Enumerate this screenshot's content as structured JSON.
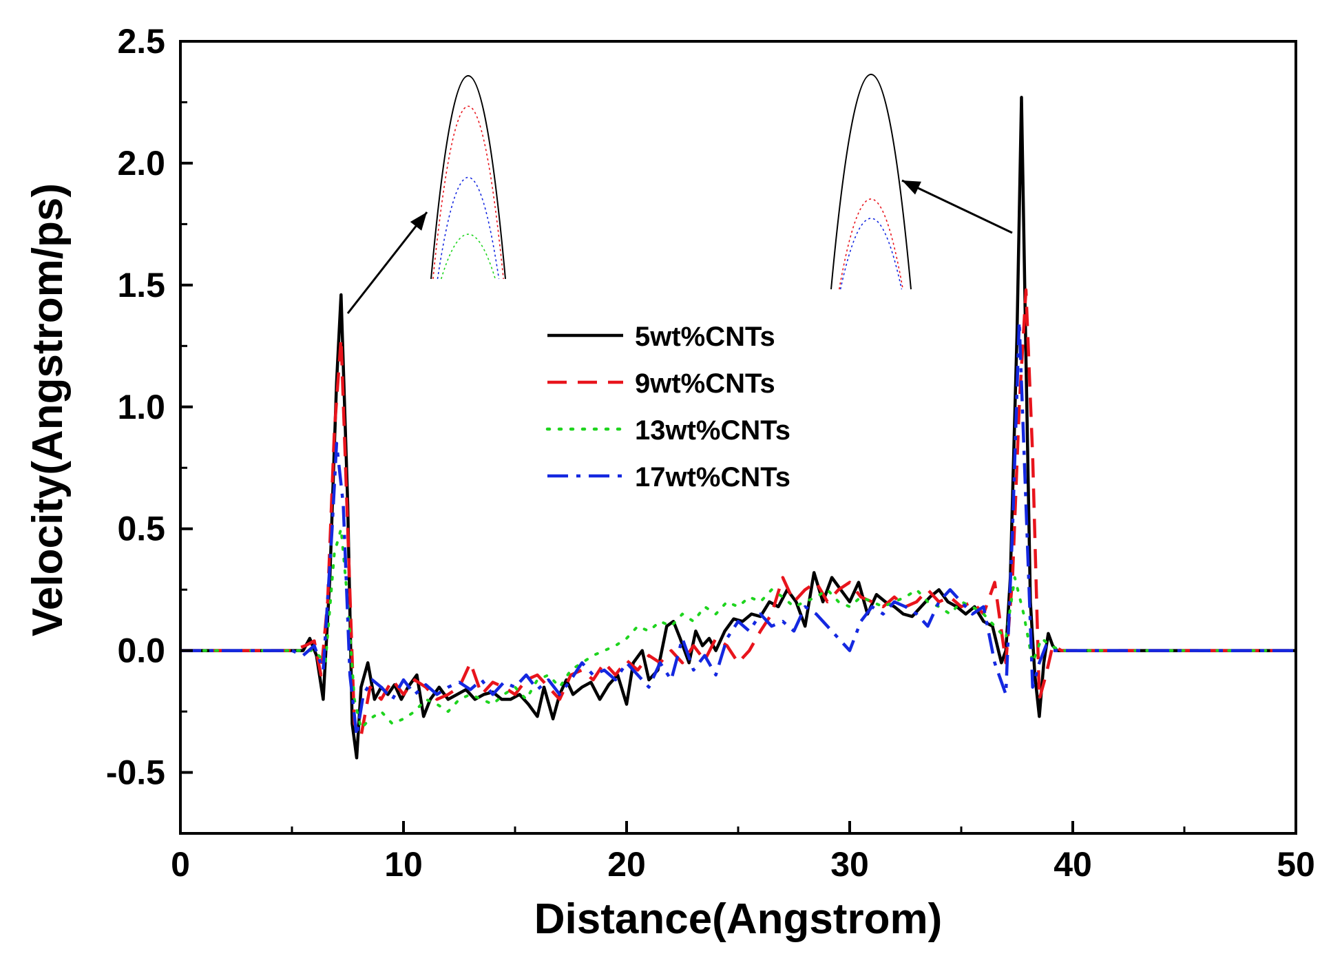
{
  "chart_data": {
    "type": "line",
    "title": "",
    "xlabel": "Distance(Angstrom)",
    "ylabel": "Velocity(Angstrom/ps)",
    "xlim": [
      0,
      50
    ],
    "ylim": [
      -0.75,
      2.5
    ],
    "xticks": [
      0,
      10,
      20,
      30,
      40,
      50
    ],
    "xtick_labels": [
      "0",
      "10",
      "20",
      "30",
      "40",
      "50"
    ],
    "yticks": [
      -0.5,
      0.0,
      0.5,
      1.0,
      1.5,
      2.0,
      2.5
    ],
    "ytick_labels": [
      "-0.5",
      "0.0",
      "0.5",
      "1.0",
      "1.5",
      "2.0",
      "2.5"
    ],
    "grid": false,
    "legend_position": "center",
    "series": [
      {
        "name": "5wt%CNTs",
        "color": "#000000",
        "dash": "solid",
        "x": [
          0,
          5,
          5.5,
          5.8,
          6.1,
          6.4,
          6.7,
          7.0,
          7.2,
          7.5,
          7.7,
          7.9,
          8.1,
          8.4,
          8.7,
          9.0,
          9.3,
          9.6,
          9.9,
          10.2,
          10.6,
          10.9,
          11.2,
          11.6,
          12.0,
          12.4,
          12.8,
          13.2,
          13.6,
          14.0,
          14.4,
          14.8,
          15.2,
          15.6,
          16.0,
          16.3,
          16.7,
          17.0,
          17.3,
          17.6,
          18.0,
          18.4,
          18.8,
          19.2,
          19.6,
          20.0,
          20.3,
          20.7,
          21.0,
          21.4,
          21.8,
          22.1,
          22.4,
          22.8,
          23.1,
          23.4,
          23.7,
          24.0,
          24.4,
          24.8,
          25.2,
          25.6,
          26.0,
          26.4,
          26.8,
          27.2,
          27.6,
          28.0,
          28.4,
          28.8,
          29.2,
          29.6,
          30.0,
          30.4,
          30.8,
          31.2,
          31.6,
          32.0,
          32.4,
          32.8,
          33.2,
          33.6,
          34.0,
          34.4,
          34.8,
          35.2,
          35.6,
          36.0,
          36.4,
          36.8,
          37.0,
          37.2,
          37.5,
          37.7,
          37.9,
          38.1,
          38.3,
          38.5,
          38.7,
          38.9,
          39.1,
          39.3,
          39.6,
          40.0,
          45,
          50
        ],
        "y": [
          0,
          0,
          0,
          0.05,
          -0.02,
          -0.2,
          0.3,
          1.1,
          1.46,
          0.6,
          -0.3,
          -0.44,
          -0.15,
          -0.05,
          -0.2,
          -0.15,
          -0.18,
          -0.14,
          -0.2,
          -0.15,
          -0.1,
          -0.27,
          -0.2,
          -0.15,
          -0.2,
          -0.18,
          -0.16,
          -0.2,
          -0.18,
          -0.17,
          -0.2,
          -0.2,
          -0.18,
          -0.22,
          -0.27,
          -0.15,
          -0.28,
          -0.18,
          -0.12,
          -0.18,
          -0.15,
          -0.13,
          -0.2,
          -0.14,
          -0.1,
          -0.22,
          -0.05,
          0.0,
          -0.12,
          -0.08,
          0.1,
          0.12,
          0.05,
          -0.05,
          0.08,
          0.02,
          0.05,
          0.0,
          0.08,
          0.13,
          0.12,
          0.15,
          0.14,
          0.2,
          0.18,
          0.25,
          0.2,
          0.1,
          0.32,
          0.2,
          0.3,
          0.25,
          0.2,
          0.28,
          0.15,
          0.23,
          0.2,
          0.18,
          0.15,
          0.14,
          0.18,
          0.22,
          0.25,
          0.2,
          0.18,
          0.15,
          0.18,
          0.12,
          0.1,
          -0.05,
          0.0,
          0.3,
          1.3,
          2.27,
          1.2,
          0.2,
          -0.1,
          -0.27,
          -0.05,
          0.07,
          0.02,
          0,
          0,
          0,
          0,
          0
        ]
      },
      {
        "name": "9wt%CNTs",
        "color": "#e8141c",
        "dash": "long-dash",
        "x": [
          0,
          5,
          5.6,
          6.0,
          6.3,
          6.6,
          6.9,
          7.2,
          7.5,
          7.8,
          8.1,
          8.5,
          9.0,
          9.5,
          10.0,
          10.5,
          11.0,
          11.5,
          12.0,
          12.5,
          13.0,
          13.5,
          14.0,
          14.5,
          15.0,
          15.5,
          16.0,
          16.5,
          17.0,
          17.5,
          18.0,
          18.5,
          19.0,
          19.5,
          20.0,
          20.5,
          21.0,
          21.5,
          22.0,
          22.5,
          23.0,
          23.5,
          24.0,
          24.5,
          25.0,
          25.5,
          26.0,
          26.5,
          27.0,
          27.5,
          28.0,
          28.5,
          29.0,
          29.5,
          30.0,
          30.5,
          31.0,
          31.5,
          32.0,
          32.5,
          33.0,
          33.5,
          34.0,
          34.5,
          35.0,
          35.5,
          36.0,
          36.5,
          37.0,
          37.3,
          37.6,
          37.9,
          38.2,
          38.5,
          38.8,
          39.1,
          39.5,
          40.0,
          45,
          50
        ],
        "y": [
          0,
          0,
          0.02,
          0.04,
          -0.1,
          0.2,
          0.9,
          1.28,
          0.5,
          -0.3,
          -0.35,
          -0.15,
          -0.2,
          -0.12,
          -0.18,
          -0.12,
          -0.15,
          -0.2,
          -0.18,
          -0.15,
          -0.05,
          -0.18,
          -0.13,
          -0.15,
          -0.18,
          -0.12,
          -0.1,
          -0.15,
          -0.2,
          -0.1,
          -0.08,
          -0.12,
          -0.05,
          -0.1,
          -0.04,
          -0.08,
          -0.02,
          -0.05,
          0.0,
          -0.05,
          0.02,
          -0.04,
          0.05,
          0.02,
          -0.05,
          0.0,
          0.08,
          0.15,
          0.3,
          0.2,
          0.25,
          0.28,
          0.2,
          0.25,
          0.28,
          0.22,
          0.2,
          0.18,
          0.22,
          0.18,
          0.2,
          0.25,
          0.2,
          0.22,
          0.18,
          0.2,
          0.15,
          0.28,
          -0.05,
          0.3,
          1.0,
          1.48,
          0.8,
          -0.2,
          -0.1,
          0.02,
          0,
          0,
          0,
          0
        ]
      },
      {
        "name": "13wt%CNTs",
        "color": "#1ed41e",
        "dash": "dotted",
        "x": [
          0,
          5,
          6.0,
          6.5,
          6.9,
          7.2,
          7.5,
          7.8,
          8.1,
          8.5,
          9.0,
          9.5,
          10.0,
          10.5,
          11.0,
          11.5,
          12.0,
          12.5,
          13.0,
          13.5,
          14.0,
          14.5,
          15.0,
          15.5,
          16.0,
          16.5,
          17.0,
          17.5,
          18.0,
          18.5,
          19.0,
          19.5,
          20.0,
          20.5,
          21.0,
          21.5,
          22.0,
          22.5,
          23.0,
          23.5,
          24.0,
          24.5,
          25.0,
          25.5,
          26.0,
          26.5,
          27.0,
          27.5,
          28.0,
          28.5,
          29.0,
          29.5,
          30.0,
          30.5,
          31.0,
          31.5,
          32.0,
          32.5,
          33.0,
          33.5,
          34.0,
          34.5,
          35.0,
          35.5,
          36.0,
          36.5,
          37.0,
          37.4,
          37.8,
          38.2,
          38.6,
          39.0,
          39.5,
          40.0,
          45,
          50
        ],
        "y": [
          0,
          0,
          0,
          -0.05,
          0.4,
          0.5,
          0.2,
          -0.2,
          -0.32,
          -0.28,
          -0.25,
          -0.3,
          -0.28,
          -0.25,
          -0.2,
          -0.22,
          -0.25,
          -0.2,
          -0.18,
          -0.2,
          -0.22,
          -0.18,
          -0.15,
          -0.2,
          -0.12,
          -0.1,
          -0.15,
          -0.08,
          -0.05,
          -0.02,
          0.0,
          0.02,
          0.05,
          0.1,
          0.08,
          0.12,
          0.1,
          0.15,
          0.12,
          0.18,
          0.15,
          0.2,
          0.18,
          0.22,
          0.2,
          0.25,
          0.22,
          0.18,
          0.2,
          0.22,
          0.25,
          0.2,
          0.18,
          0.22,
          0.2,
          0.18,
          0.2,
          0.22,
          0.25,
          0.2,
          0.18,
          0.15,
          0.2,
          0.18,
          0.15,
          0.1,
          0.05,
          0.3,
          0.15,
          -0.05,
          0.05,
          0.02,
          0,
          0,
          0,
          0
        ]
      },
      {
        "name": "17wt%CNTs",
        "color": "#1428e0",
        "dash": "dash-dot",
        "x": [
          0,
          5,
          5.5,
          6.0,
          6.4,
          6.8,
          7.0,
          7.3,
          7.6,
          7.9,
          8.2,
          8.6,
          9.0,
          9.5,
          10.0,
          10.5,
          11.0,
          11.5,
          12.0,
          12.5,
          13.0,
          13.5,
          14.0,
          14.5,
          15.0,
          15.5,
          16.0,
          16.5,
          17.0,
          17.5,
          18.0,
          18.5,
          19.0,
          19.5,
          20.0,
          20.5,
          21.0,
          21.5,
          22.0,
          22.5,
          23.0,
          23.5,
          24.0,
          24.5,
          25.0,
          25.5,
          26.0,
          26.5,
          27.0,
          27.5,
          28.0,
          28.5,
          29.0,
          29.5,
          30.0,
          30.5,
          31.0,
          31.5,
          32.0,
          32.5,
          33.0,
          33.5,
          34.0,
          34.5,
          35.0,
          35.5,
          36.0,
          36.5,
          37.0,
          37.3,
          37.6,
          37.9,
          38.2,
          38.5,
          38.8,
          39.1,
          39.5,
          40.0,
          45,
          50
        ],
        "y": [
          0,
          0,
          -0.02,
          0.02,
          -0.08,
          0.5,
          0.85,
          0.6,
          -0.1,
          -0.35,
          -0.18,
          -0.12,
          -0.15,
          -0.2,
          -0.12,
          -0.18,
          -0.14,
          -0.18,
          -0.15,
          -0.13,
          -0.16,
          -0.12,
          -0.18,
          -0.13,
          -0.15,
          -0.1,
          -0.16,
          -0.12,
          -0.18,
          -0.12,
          -0.05,
          -0.1,
          -0.08,
          -0.12,
          -0.05,
          -0.1,
          -0.15,
          -0.05,
          -0.12,
          0.05,
          -0.08,
          -0.02,
          -0.1,
          0.05,
          0.12,
          0.08,
          0.15,
          0.1,
          0.12,
          0.08,
          0.18,
          0.15,
          0.1,
          0.05,
          0.0,
          0.12,
          0.18,
          0.15,
          0.2,
          0.18,
          0.15,
          0.1,
          0.2,
          0.25,
          0.2,
          0.15,
          0.18,
          -0.05,
          -0.18,
          0.5,
          1.35,
          0.6,
          -0.15,
          -0.05,
          0.02,
          0,
          0,
          0,
          0,
          0
        ]
      }
    ],
    "insets": [
      {
        "position": "left",
        "points_to_x": 7.2,
        "peaks": [
          {
            "series": "5wt%CNTs",
            "level": 1.0
          },
          {
            "series": "9wt%CNTs",
            "level": 0.85
          },
          {
            "series": "17wt%CNTs",
            "level": 0.5
          },
          {
            "series": "13wt%CNTs",
            "level": 0.22
          }
        ]
      },
      {
        "position": "right",
        "points_to_x": 37.9,
        "peaks": [
          {
            "series": "5wt%CNTs",
            "level": 1.0
          },
          {
            "series": "9wt%CNTs",
            "level": 0.42
          },
          {
            "series": "17wt%CNTs",
            "level": 0.33
          }
        ]
      }
    ]
  }
}
